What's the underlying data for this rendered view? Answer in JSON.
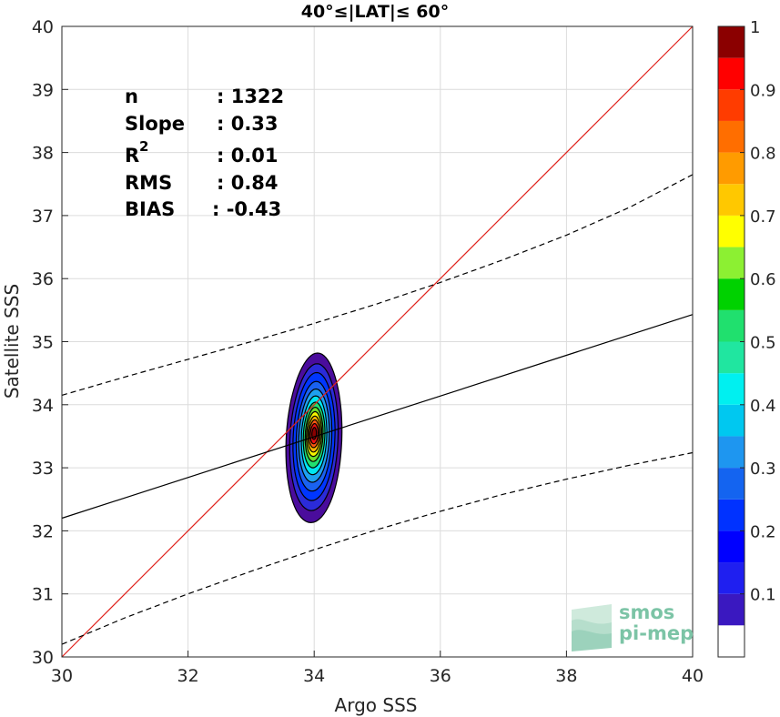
{
  "chart_data": {
    "type": "heatmap",
    "title": "40°≤|LAT|≤ 60°",
    "xlabel": "Argo SSS",
    "ylabel": "Satellite SSS",
    "xlim": [
      30,
      40
    ],
    "ylim": [
      30,
      40
    ],
    "xticks": [
      "30",
      "32",
      "34",
      "36",
      "38",
      "40"
    ],
    "yticks": [
      "30",
      "31",
      "32",
      "33",
      "34",
      "35",
      "36",
      "37",
      "38",
      "39",
      "40"
    ],
    "grid": true,
    "stats": [
      {
        "label": "n",
        "value": ": 1322"
      },
      {
        "label": "Slope",
        "value": ": 0.33"
      },
      {
        "label": "R",
        "sup": "2",
        "value": ": 0.01"
      },
      {
        "label": "RMS",
        "value": ": 0.84"
      },
      {
        "label": "BIAS",
        "value": ": -0.43"
      }
    ],
    "density_peak": {
      "x": 34.0,
      "y": 33.55
    },
    "density_contours": [
      {
        "level": 0.05,
        "color": "#4a0c9c",
        "rx": 0.44,
        "ry_up": 1.27,
        "ry_down": 1.42
      },
      {
        "level": 0.1,
        "color": "#2b2bd9",
        "rx": 0.38,
        "ry_up": 1.1,
        "ry_down": 1.23
      },
      {
        "level": 0.15,
        "color": "#0036ff",
        "rx": 0.33,
        "ry_up": 0.96,
        "ry_down": 1.07
      },
      {
        "level": 0.2,
        "color": "#1a62f0",
        "rx": 0.28,
        "ry_up": 0.82,
        "ry_down": 0.92
      },
      {
        "level": 0.25,
        "color": "#1ea0f0",
        "rx": 0.24,
        "ry_up": 0.7,
        "ry_down": 0.78
      },
      {
        "level": 0.3,
        "color": "#00e6f0",
        "rx": 0.2,
        "ry_up": 0.59,
        "ry_down": 0.66
      },
      {
        "level": 0.4,
        "color": "#20e070",
        "rx": 0.17,
        "ry_up": 0.49,
        "ry_down": 0.55
      },
      {
        "level": 0.5,
        "color": "#6ee02a",
        "rx": 0.14,
        "ry_up": 0.41,
        "ry_down": 0.45
      },
      {
        "level": 0.6,
        "color": "#f5f500",
        "rx": 0.12,
        "ry_up": 0.34,
        "ry_down": 0.37
      },
      {
        "level": 0.7,
        "color": "#ffb400",
        "rx": 0.1,
        "ry_up": 0.27,
        "ry_down": 0.3
      },
      {
        "level": 0.8,
        "color": "#ff5a10",
        "rx": 0.08,
        "ry_up": 0.21,
        "ry_down": 0.23
      },
      {
        "level": 0.9,
        "color": "#ee1111",
        "rx": 0.06,
        "ry_up": 0.15,
        "ry_down": 0.17
      },
      {
        "level": 1.0,
        "color": "#8b0000",
        "rx": 0.035,
        "ry_up": 0.09,
        "ry_down": 0.1
      }
    ],
    "lines": {
      "one_to_one": {
        "color": "#e0201a",
        "x": [
          30,
          40
        ],
        "y": [
          30,
          40
        ]
      },
      "regression": {
        "color": "#000000",
        "x": [
          30,
          40
        ],
        "y": [
          32.2,
          35.43
        ]
      },
      "upper_bound": {
        "color": "#000000",
        "style": "dashed",
        "x": [
          30,
          31,
          32,
          33,
          34,
          35,
          36,
          37,
          38,
          39,
          40
        ],
        "y": [
          34.15,
          34.44,
          34.72,
          35.0,
          35.29,
          35.6,
          35.94,
          36.3,
          36.69,
          37.13,
          37.65
        ]
      },
      "lower_bound": {
        "color": "#000000",
        "style": "dashed",
        "x": [
          30,
          31,
          32,
          33,
          34,
          35,
          36,
          37,
          38,
          39,
          40
        ],
        "y": [
          30.2,
          30.62,
          31.0,
          31.36,
          31.7,
          32.02,
          32.31,
          32.58,
          32.82,
          33.04,
          33.24
        ]
      }
    },
    "colorbar": {
      "ticks": [
        "0.1",
        "0.2",
        "0.3",
        "0.4",
        "0.5",
        "0.6",
        "0.7",
        "0.8",
        "0.9",
        "1"
      ],
      "levels": [
        0,
        0.05,
        0.1,
        0.15,
        0.2,
        0.25,
        0.3,
        0.35,
        0.4,
        0.45,
        0.5,
        0.55,
        0.6,
        0.65,
        0.7,
        0.75,
        0.8,
        0.85,
        0.9,
        0.95,
        1.0
      ],
      "colors": [
        "#ffffff",
        "#5a0aa0",
        "#3a18c0",
        "#1f1ff0",
        "#0000ff",
        "#0032ff",
        "#1464f0",
        "#1e96f0",
        "#00c8f0",
        "#00f0f0",
        "#20e6a0",
        "#20e06e",
        "#00d200",
        "#8cf032",
        "#ffff00",
        "#ffc800",
        "#ff9b00",
        "#ff6e00",
        "#ff3c00",
        "#ff0000",
        "#8b0000"
      ]
    }
  },
  "logo": {
    "line1": "smos",
    "line2": "pi-mep"
  }
}
